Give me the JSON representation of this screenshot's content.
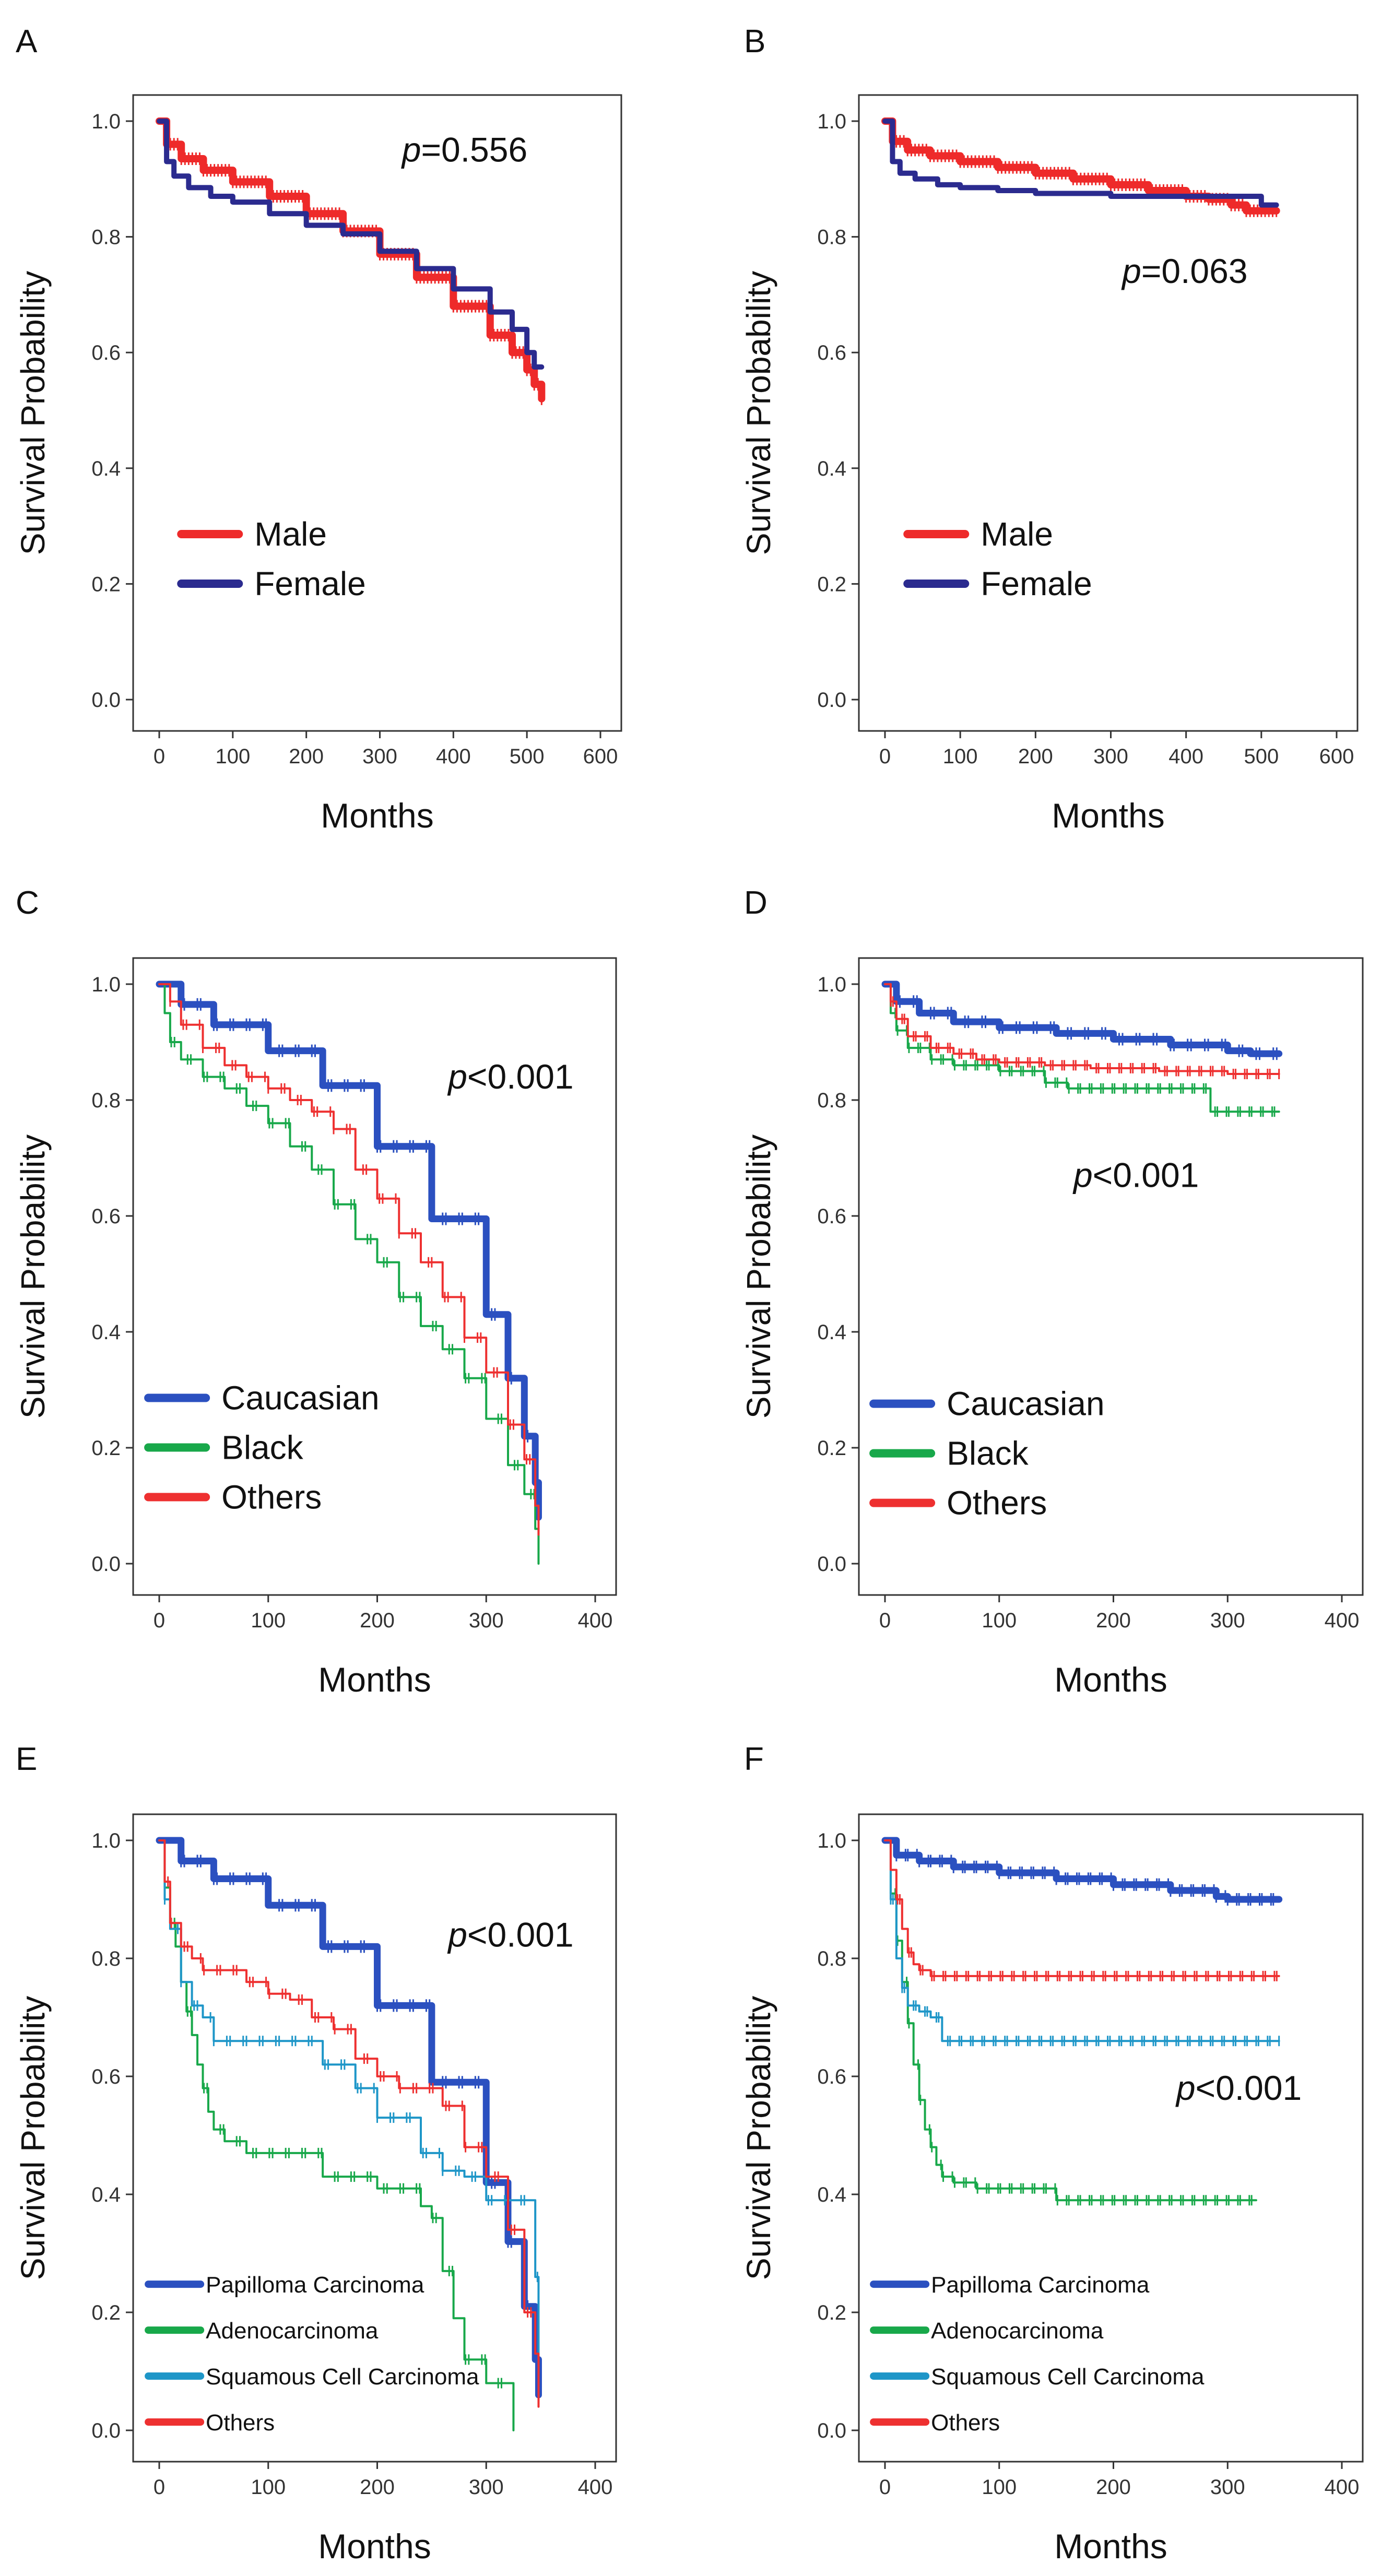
{
  "chart_data": [
    {
      "panel": "A",
      "type": "line",
      "ylabel": "Survival Probability",
      "xlabel": "Months",
      "xlim": [
        0,
        600
      ],
      "ylim": [
        0,
        1
      ],
      "xticks": [
        0,
        100,
        200,
        300,
        400,
        500,
        600
      ],
      "yticks": [
        "0.0",
        "0.2",
        "0.4",
        "0.6",
        "0.8",
        "1.0"
      ],
      "p_prefix": "p",
      "p_suffix": "=0.556",
      "p_pos": [
        330,
        0.93
      ],
      "legend_style": "large",
      "legend_pos": [
        30,
        0.25
      ],
      "series": [
        {
          "name": "Male",
          "color": "#ee2a2a",
          "width": 14,
          "censor_step": 5,
          "x": [
            0,
            10,
            30,
            60,
            100,
            150,
            200,
            250,
            300,
            350,
            400,
            450,
            480,
            500,
            510,
            520
          ],
          "y": [
            1.0,
            0.96,
            0.935,
            0.915,
            0.895,
            0.87,
            0.84,
            0.81,
            0.77,
            0.73,
            0.68,
            0.63,
            0.6,
            0.57,
            0.545,
            0.52
          ]
        },
        {
          "name": "Female",
          "color": "#2b2b8f",
          "width": 10,
          "censor_step": 5,
          "x": [
            0,
            10,
            20,
            40,
            70,
            100,
            150,
            200,
            250,
            300,
            350,
            400,
            450,
            480,
            500,
            510,
            520
          ],
          "y": [
            1.0,
            0.93,
            0.905,
            0.885,
            0.87,
            0.86,
            0.84,
            0.82,
            0.805,
            0.775,
            0.745,
            0.71,
            0.67,
            0.64,
            0.6,
            0.575,
            0.575
          ]
        }
      ]
    },
    {
      "panel": "B",
      "type": "line",
      "ylabel": "Survival Probability",
      "xlabel": "Months",
      "xlim": [
        0,
        600
      ],
      "ylim": [
        0,
        1
      ],
      "xticks": [
        0,
        100,
        200,
        300,
        400,
        500,
        600
      ],
      "yticks": [
        "0.0",
        "0.2",
        "0.4",
        "0.6",
        "0.8",
        "1.0"
      ],
      "p_prefix": "p",
      "p_suffix": "=0.063",
      "p_pos": [
        315,
        0.72
      ],
      "legend_style": "large",
      "legend_pos": [
        30,
        0.25
      ],
      "series": [
        {
          "name": "Male",
          "color": "#ee2a2a",
          "width": 14,
          "censor_step": 5,
          "x": [
            0,
            10,
            30,
            60,
            100,
            150,
            200,
            250,
            300,
            350,
            400,
            430,
            460,
            480,
            500,
            520
          ],
          "y": [
            1.0,
            0.965,
            0.95,
            0.94,
            0.93,
            0.92,
            0.91,
            0.9,
            0.89,
            0.88,
            0.87,
            0.865,
            0.855,
            0.845,
            0.845,
            0.845
          ]
        },
        {
          "name": "Female",
          "color": "#2b2b8f",
          "width": 10,
          "censor_step": 5,
          "x": [
            0,
            10,
            20,
            40,
            70,
            100,
            150,
            200,
            300,
            400,
            450,
            480,
            500,
            520
          ],
          "y": [
            1.0,
            0.93,
            0.91,
            0.9,
            0.89,
            0.885,
            0.88,
            0.875,
            0.87,
            0.87,
            0.87,
            0.87,
            0.855,
            0.855
          ]
        }
      ]
    },
    {
      "panel": "C",
      "type": "line",
      "ylabel": "Survival Probability",
      "xlabel": "Months",
      "xlim": [
        0,
        400
      ],
      "ylim": [
        0,
        1
      ],
      "xticks": [
        0,
        100,
        200,
        300,
        400
      ],
      "yticks": [
        "0.0",
        "0.2",
        "0.4",
        "0.6",
        "0.8",
        "1.0"
      ],
      "p_prefix": "p",
      "p_suffix": "<0.001",
      "p_pos": [
        265,
        0.82
      ],
      "legend_style": "large",
      "legend_pos": [
        -10,
        0.25
      ],
      "series": [
        {
          "name": "Caucasian",
          "color": "#2b50c0",
          "width": 13,
          "censor_step": 3,
          "x": [
            0,
            20,
            50,
            100,
            150,
            200,
            250,
            300,
            320,
            335,
            345,
            348
          ],
          "y": [
            1.0,
            0.965,
            0.93,
            0.885,
            0.825,
            0.72,
            0.595,
            0.43,
            0.32,
            0.22,
            0.14,
            0.08
          ]
        },
        {
          "name": "Black",
          "color": "#18a84a",
          "width": 4,
          "censor_step": 3,
          "x": [
            0,
            5,
            10,
            20,
            40,
            60,
            80,
            100,
            120,
            140,
            160,
            180,
            200,
            220,
            240,
            260,
            280,
            300,
            320,
            335,
            345,
            348
          ],
          "y": [
            1.0,
            0.95,
            0.9,
            0.87,
            0.84,
            0.82,
            0.79,
            0.76,
            0.72,
            0.68,
            0.62,
            0.56,
            0.52,
            0.46,
            0.41,
            0.37,
            0.32,
            0.25,
            0.17,
            0.12,
            0.06,
            0.0
          ]
        },
        {
          "name": "Others",
          "color": "#ee3030",
          "width": 4,
          "censor_step": 3,
          "x": [
            0,
            10,
            20,
            40,
            60,
            80,
            100,
            120,
            140,
            160,
            180,
            200,
            220,
            240,
            260,
            280,
            300,
            320,
            335,
            345,
            348
          ],
          "y": [
            1.0,
            0.97,
            0.93,
            0.89,
            0.86,
            0.84,
            0.82,
            0.8,
            0.78,
            0.75,
            0.68,
            0.63,
            0.57,
            0.52,
            0.46,
            0.39,
            0.33,
            0.24,
            0.18,
            0.1,
            0.05
          ]
        }
      ]
    },
    {
      "panel": "D",
      "type": "line",
      "ylabel": "Survival Probability",
      "xlabel": "Months",
      "xlim": [
        0,
        400
      ],
      "ylim": [
        0,
        1
      ],
      "xticks": [
        0,
        100,
        200,
        300,
        400
      ],
      "yticks": [
        "0.0",
        "0.2",
        "0.4",
        "0.6",
        "0.8",
        "1.0"
      ],
      "p_prefix": "p",
      "p_suffix": "<0.001",
      "p_pos": [
        165,
        0.65
      ],
      "legend_style": "large",
      "legend_pos": [
        -10,
        0.24
      ],
      "series": [
        {
          "name": "Caucasian",
          "color": "#2b50c0",
          "width": 13,
          "censor_step": 3,
          "x": [
            0,
            10,
            30,
            60,
            100,
            150,
            200,
            250,
            300,
            320,
            345
          ],
          "y": [
            1.0,
            0.97,
            0.95,
            0.935,
            0.925,
            0.915,
            0.905,
            0.895,
            0.885,
            0.88,
            0.88
          ]
        },
        {
          "name": "Black",
          "color": "#18a84a",
          "width": 4,
          "censor_step": 2,
          "x": [
            0,
            5,
            10,
            20,
            40,
            60,
            100,
            140,
            160,
            200,
            240,
            280,
            285,
            300,
            345
          ],
          "y": [
            1.0,
            0.95,
            0.92,
            0.89,
            0.87,
            0.86,
            0.85,
            0.83,
            0.82,
            0.82,
            0.82,
            0.82,
            0.78,
            0.78,
            0.78
          ]
        },
        {
          "name": "Others",
          "color": "#ee3030",
          "width": 4,
          "censor_step": 2,
          "x": [
            0,
            5,
            10,
            20,
            40,
            60,
            80,
            100,
            140,
            180,
            240,
            300,
            345
          ],
          "y": [
            1.0,
            0.97,
            0.94,
            0.91,
            0.89,
            0.88,
            0.87,
            0.865,
            0.86,
            0.855,
            0.85,
            0.845,
            0.845
          ]
        }
      ]
    },
    {
      "panel": "E",
      "type": "line",
      "ylabel": "Survival Probability",
      "xlabel": "Months",
      "xlim": [
        0,
        400
      ],
      "ylim": [
        0,
        1
      ],
      "xticks": [
        0,
        100,
        200,
        300,
        400
      ],
      "yticks": [
        "0.0",
        "0.2",
        "0.4",
        "0.6",
        "0.8",
        "1.0"
      ],
      "p_prefix": "p",
      "p_suffix": "<0.001",
      "p_pos": [
        265,
        0.82
      ],
      "legend_style": "small",
      "legend_pos": [
        -10,
        0.23
      ],
      "series": [
        {
          "name": "Papilloma Carcinoma",
          "color": "#2b50c0",
          "width": 13,
          "censor_step": 3,
          "x": [
            0,
            20,
            50,
            100,
            150,
            200,
            250,
            300,
            320,
            335,
            345,
            348
          ],
          "y": [
            1.0,
            0.965,
            0.935,
            0.89,
            0.82,
            0.72,
            0.59,
            0.42,
            0.32,
            0.21,
            0.12,
            0.06
          ]
        },
        {
          "name": "Adenocarcinoma",
          "color": "#18a84a",
          "width": 4,
          "censor_step": 3,
          "x": [
            0,
            5,
            10,
            15,
            20,
            25,
            30,
            35,
            40,
            45,
            50,
            60,
            80,
            100,
            140,
            150,
            160,
            200,
            240,
            250,
            260,
            270,
            280,
            300,
            320,
            325
          ],
          "y": [
            1.0,
            0.92,
            0.86,
            0.82,
            0.76,
            0.71,
            0.67,
            0.62,
            0.58,
            0.54,
            0.51,
            0.49,
            0.47,
            0.47,
            0.47,
            0.43,
            0.43,
            0.41,
            0.38,
            0.36,
            0.27,
            0.19,
            0.12,
            0.08,
            0.08,
            0.0
          ]
        },
        {
          "name": "Squamous Cell Carcinoma",
          "color": "#1e96c8",
          "width": 4,
          "censor_step": 3,
          "x": [
            0,
            5,
            10,
            20,
            30,
            40,
            50,
            100,
            140,
            150,
            180,
            200,
            240,
            260,
            280,
            300,
            320,
            340,
            345,
            348
          ],
          "y": [
            1.0,
            0.9,
            0.85,
            0.76,
            0.72,
            0.7,
            0.66,
            0.66,
            0.66,
            0.62,
            0.58,
            0.53,
            0.47,
            0.44,
            0.43,
            0.39,
            0.39,
            0.39,
            0.26,
            0.1
          ]
        },
        {
          "name": "Others",
          "color": "#ee3030",
          "width": 4,
          "censor_step": 3,
          "x": [
            0,
            5,
            10,
            20,
            30,
            40,
            60,
            80,
            100,
            120,
            140,
            160,
            180,
            200,
            220,
            240,
            260,
            280,
            300,
            320,
            335,
            345,
            348
          ],
          "y": [
            1.0,
            0.93,
            0.86,
            0.82,
            0.8,
            0.78,
            0.78,
            0.76,
            0.74,
            0.73,
            0.7,
            0.68,
            0.63,
            0.6,
            0.58,
            0.58,
            0.55,
            0.48,
            0.43,
            0.34,
            0.2,
            0.13,
            0.04
          ]
        }
      ]
    },
    {
      "panel": "F",
      "type": "line",
      "ylabel": "Survival Probability",
      "xlabel": "Months",
      "xlim": [
        0,
        400
      ],
      "ylim": [
        0,
        1
      ],
      "xticks": [
        0,
        100,
        200,
        300,
        400
      ],
      "yticks": [
        "0.0",
        "0.2",
        "0.4",
        "0.6",
        "0.8",
        "1.0"
      ],
      "p_prefix": "p",
      "p_suffix": "<0.001",
      "p_pos": [
        255,
        0.56
      ],
      "legend_style": "small",
      "legend_pos": [
        -10,
        0.23
      ],
      "series": [
        {
          "name": "Papilloma Carcinoma",
          "color": "#2b50c0",
          "width": 13,
          "censor_step": 2,
          "x": [
            0,
            10,
            30,
            60,
            100,
            150,
            200,
            250,
            290,
            300,
            320,
            345
          ],
          "y": [
            1.0,
            0.975,
            0.965,
            0.955,
            0.945,
            0.935,
            0.925,
            0.915,
            0.905,
            0.9,
            0.9,
            0.9
          ]
        },
        {
          "name": "Adenocarcinoma",
          "color": "#18a84a",
          "width": 4,
          "censor_step": 2,
          "x": [
            0,
            5,
            10,
            15,
            20,
            25,
            30,
            35,
            40,
            45,
            50,
            60,
            80,
            100,
            130,
            150,
            160,
            200,
            250,
            300,
            325
          ],
          "y": [
            1.0,
            0.91,
            0.83,
            0.76,
            0.69,
            0.62,
            0.56,
            0.51,
            0.48,
            0.45,
            0.43,
            0.42,
            0.41,
            0.41,
            0.41,
            0.39,
            0.39,
            0.39,
            0.39,
            0.39,
            0.39
          ]
        },
        {
          "name": "Squamous Cell Carcinoma",
          "color": "#1e96c8",
          "width": 4,
          "censor_step": 2,
          "x": [
            0,
            5,
            10,
            15,
            20,
            30,
            40,
            50,
            100,
            150,
            200,
            250,
            300,
            345
          ],
          "y": [
            1.0,
            0.9,
            0.8,
            0.75,
            0.72,
            0.71,
            0.7,
            0.66,
            0.66,
            0.66,
            0.66,
            0.66,
            0.66,
            0.66
          ]
        },
        {
          "name": "Others",
          "color": "#ee3030",
          "width": 4,
          "censor_step": 2,
          "x": [
            0,
            5,
            10,
            15,
            20,
            25,
            30,
            40,
            50,
            60,
            100,
            150,
            200,
            250,
            300,
            345
          ],
          "y": [
            1.0,
            0.95,
            0.9,
            0.85,
            0.81,
            0.79,
            0.78,
            0.77,
            0.77,
            0.77,
            0.77,
            0.77,
            0.77,
            0.77,
            0.77,
            0.77
          ]
        }
      ]
    }
  ]
}
